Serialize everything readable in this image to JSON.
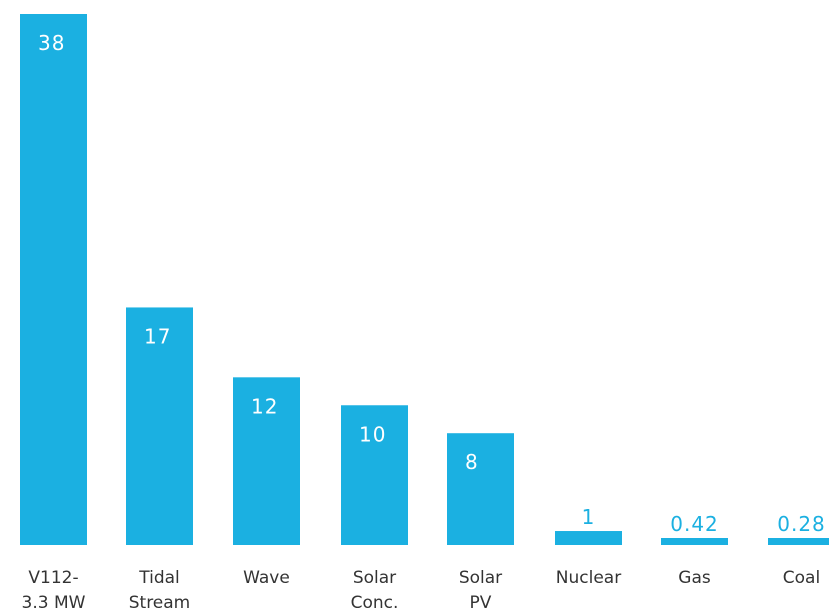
{
  "chart_data": {
    "type": "bar",
    "title": "",
    "xlabel": "",
    "ylabel": "",
    "categories": [
      [
        "V112-",
        "3.3 MW"
      ],
      [
        "Tidal",
        "Stream"
      ],
      [
        "Wave"
      ],
      [
        "Solar",
        "Conc."
      ],
      [
        "Solar",
        "PV"
      ],
      [
        "Nuclear"
      ],
      [
        "Gas"
      ],
      [
        "Coal"
      ]
    ],
    "values": [
      38,
      17,
      12,
      10,
      8,
      1,
      0.42,
      0.28
    ],
    "value_labels": [
      "38",
      "17",
      "12",
      "10",
      "8",
      "1",
      "0.42",
      "0.28"
    ],
    "ylim": [
      0,
      38
    ],
    "grid": false,
    "legend": "none"
  },
  "colors": {
    "bar": "#1bb0e1",
    "label_inside": "#ffffff",
    "label_above": "#1bb0e1",
    "category_text": "#333333",
    "background": "#ffffff"
  }
}
